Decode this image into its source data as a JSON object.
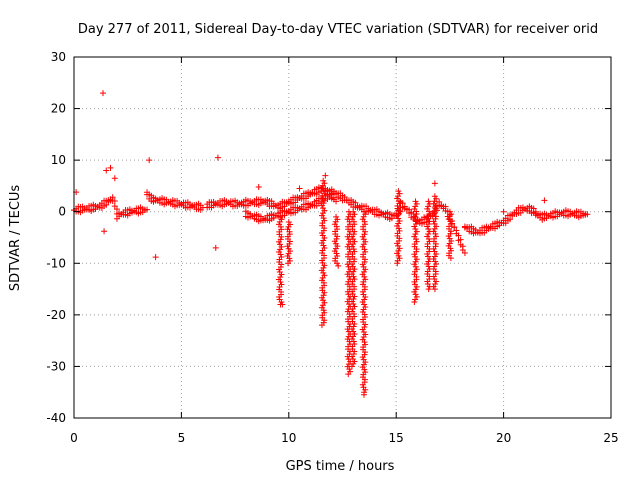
{
  "chart_data": {
    "type": "scatter",
    "title": "Day 277 of 2011, Sidereal Day-to-day VTEC variation (SDTVAR) for receiver orid",
    "xlabel": "GPS time / hours",
    "ylabel": "SDTVAR / TECUs",
    "xlim": [
      0,
      25
    ],
    "ylim": [
      -40,
      30
    ],
    "xticks": [
      0,
      5,
      10,
      15,
      20,
      25
    ],
    "yticks": [
      -40,
      -30,
      -20,
      -10,
      0,
      10,
      20,
      30
    ],
    "xtick_labels": [
      "0",
      "5",
      "10",
      "15",
      "20",
      "25"
    ],
    "ytick_labels": [
      "-40",
      "-30",
      "-20",
      "-10",
      "0",
      "10",
      "20",
      "30"
    ],
    "grid": true,
    "marker": "+",
    "color": "#ff0000",
    "series": [
      {
        "name": "SDTVAR",
        "segments": [
          {
            "x": [
              0.0,
              0.3,
              0.6,
              0.9,
              1.2,
              1.5,
              1.8,
              2.0
            ],
            "y": [
              0.3,
              0.5,
              0.6,
              0.8,
              1.0,
              1.8,
              2.5,
              0.5
            ]
          },
          {
            "x": [
              2.0,
              2.3,
              2.6,
              2.9,
              3.2,
              3.4
            ],
            "y": [
              -0.8,
              -0.3,
              0.0,
              0.2,
              0.3,
              0.4
            ]
          },
          {
            "x": [
              3.4,
              3.6,
              3.9,
              4.2,
              4.5,
              4.8,
              5.1,
              5.4,
              5.7,
              6.0
            ],
            "y": [
              3.5,
              2.5,
              2.2,
              2.0,
              1.8,
              1.6,
              1.4,
              1.2,
              1.0,
              0.8
            ]
          },
          {
            "x": [
              6.2,
              6.5,
              6.8,
              7.1,
              7.4,
              7.7,
              8.0,
              8.3,
              8.6,
              8.9,
              9.2,
              9.5,
              9.8,
              10.1,
              10.4,
              10.7,
              11.0,
              11.3,
              11.6,
              11.9,
              12.2
            ],
            "y": [
              1.2,
              1.5,
              1.6,
              1.8,
              1.6,
              1.5,
              1.7,
              1.8,
              1.9,
              2.0,
              1.5,
              1.0,
              1.5,
              2.0,
              2.5,
              3.0,
              3.5,
              4.0,
              4.5,
              3.5,
              2.0
            ]
          },
          {
            "x": [
              8.0,
              8.4,
              8.8,
              9.2,
              9.6,
              10.0,
              10.4,
              10.8,
              11.2,
              11.6,
              12.0
            ],
            "y": [
              -0.5,
              -1.0,
              -1.5,
              -1.0,
              -0.5,
              0.0,
              0.5,
              1.0,
              1.5,
              2.5,
              3.5
            ]
          },
          {
            "x": [
              12.0,
              12.4,
              12.8,
              13.2,
              13.6,
              14.0,
              14.4,
              14.8,
              15.2
            ],
            "y": [
              4.0,
              3.0,
              2.0,
              1.0,
              0.5,
              0.0,
              -0.5,
              -1.0,
              0.0
            ]
          },
          {
            "x": [
              15.2,
              15.5,
              15.8,
              16.1,
              16.4,
              16.7,
              17.0,
              17.3,
              17.6,
              17.9,
              18.2
            ],
            "y": [
              1.5,
              0.5,
              -1.0,
              -2.0,
              -1.5,
              -0.5,
              1.5,
              0.5,
              -2.0,
              -5.0,
              -8.0
            ]
          },
          {
            "x": [
              18.2,
              18.5,
              18.8,
              19.1,
              19.4,
              19.7,
              20.0,
              20.3,
              20.6,
              20.9,
              21.2,
              21.5
            ],
            "y": [
              -3.0,
              -3.5,
              -4.0,
              -3.5,
              -3.0,
              -2.5,
              -2.0,
              -1.0,
              0.0,
              0.5,
              0.5,
              0.0
            ]
          },
          {
            "x": [
              21.5,
              21.8,
              22.1,
              22.4,
              22.7,
              23.0,
              23.3,
              23.6,
              23.9
            ],
            "y": [
              -0.5,
              -1.0,
              -0.8,
              -0.5,
              -0.3,
              -0.3,
              -0.4,
              -0.5,
              -0.5
            ]
          }
        ],
        "spikes": [
          {
            "x": 9.6,
            "y_top": -1.0,
            "y_bottom": -18.0
          },
          {
            "x": 10.0,
            "y_top": -2.0,
            "y_bottom": -10.0
          },
          {
            "x": 11.6,
            "y_top": 6.0,
            "y_bottom": -22.0
          },
          {
            "x": 12.2,
            "y_top": -1.0,
            "y_bottom": -10.0
          },
          {
            "x": 12.8,
            "y_top": 0.0,
            "y_bottom": -31.5
          },
          {
            "x": 13.0,
            "y_top": 0.0,
            "y_bottom": -30.0
          },
          {
            "x": 13.5,
            "y_top": 0.0,
            "y_bottom": -35.0
          },
          {
            "x": 15.1,
            "y_top": 4.0,
            "y_bottom": -10.0
          },
          {
            "x": 15.9,
            "y_top": 2.0,
            "y_bottom": -17.5
          },
          {
            "x": 16.5,
            "y_top": 2.0,
            "y_bottom": -15.0
          },
          {
            "x": 16.8,
            "y_top": 3.0,
            "y_bottom": -15.0
          },
          {
            "x": 17.5,
            "y_top": 0.0,
            "y_bottom": -9.0
          }
        ],
        "outliers": [
          {
            "x": 0.1,
            "y": 3.8
          },
          {
            "x": 1.35,
            "y": 23.0
          },
          {
            "x": 1.4,
            "y": -3.8
          },
          {
            "x": 1.5,
            "y": 8.0
          },
          {
            "x": 1.7,
            "y": 8.5
          },
          {
            "x": 1.9,
            "y": 6.5
          },
          {
            "x": 3.5,
            "y": 10.0
          },
          {
            "x": 3.8,
            "y": -8.8
          },
          {
            "x": 6.6,
            "y": -7.0
          },
          {
            "x": 6.7,
            "y": 10.5
          },
          {
            "x": 8.6,
            "y": 4.8
          },
          {
            "x": 9.7,
            "y": -18.0
          },
          {
            "x": 10.5,
            "y": 4.5
          },
          {
            "x": 11.7,
            "y": 7.0
          },
          {
            "x": 12.3,
            "y": -10.5
          },
          {
            "x": 13.5,
            "y": -35.5
          },
          {
            "x": 16.8,
            "y": 5.5
          },
          {
            "x": 20.0,
            "y": 0.0
          },
          {
            "x": 21.9,
            "y": 2.2
          }
        ]
      }
    ]
  }
}
